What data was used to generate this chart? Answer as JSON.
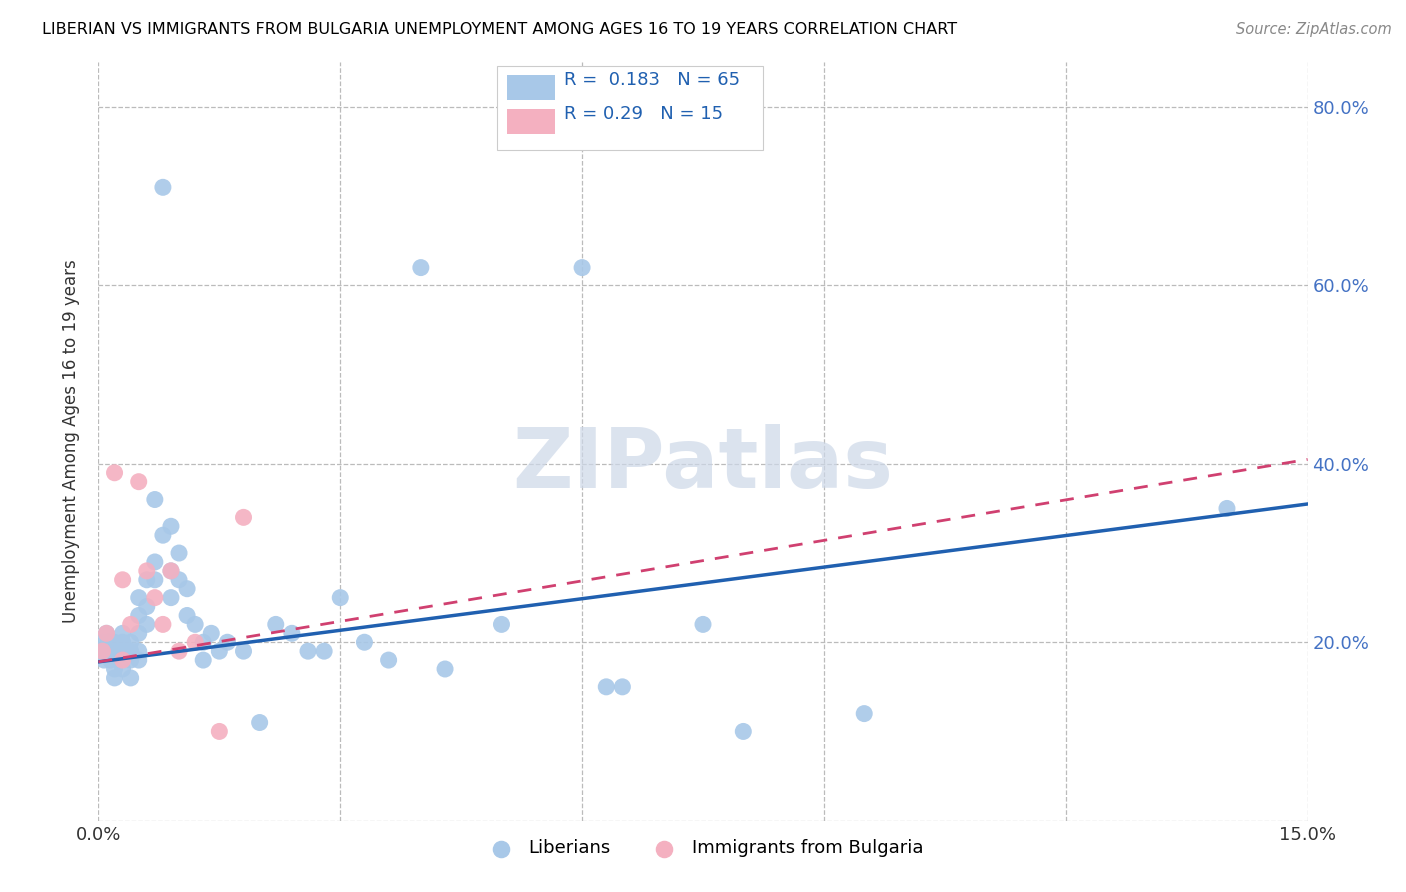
{
  "title": "LIBERIAN VS IMMIGRANTS FROM BULGARIA UNEMPLOYMENT AMONG AGES 16 TO 19 YEARS CORRELATION CHART",
  "source": "Source: ZipAtlas.com",
  "ylabel": "Unemployment Among Ages 16 to 19 years",
  "xlim": [
    0.0,
    0.15
  ],
  "ylim": [
    0.0,
    0.85
  ],
  "yticks": [
    0.0,
    0.2,
    0.4,
    0.6,
    0.8
  ],
  "xticks": [
    0.0,
    0.03,
    0.06,
    0.09,
    0.12,
    0.15
  ],
  "liberian_R": 0.183,
  "liberian_N": 65,
  "bulgaria_R": 0.29,
  "bulgaria_N": 15,
  "liberian_color": "#a8c8e8",
  "liberian_line_color": "#2060b0",
  "bulgaria_color": "#f4b0c0",
  "bulgaria_line_color": "#d04070",
  "watermark_color": "#cdd8e8",
  "liberian_x": [
    0.0003,
    0.0005,
    0.0007,
    0.001,
    0.001,
    0.0012,
    0.0015,
    0.0015,
    0.002,
    0.002,
    0.002,
    0.002,
    0.003,
    0.003,
    0.003,
    0.003,
    0.004,
    0.004,
    0.004,
    0.004,
    0.005,
    0.005,
    0.005,
    0.005,
    0.005,
    0.006,
    0.006,
    0.006,
    0.007,
    0.007,
    0.007,
    0.008,
    0.008,
    0.009,
    0.009,
    0.009,
    0.01,
    0.01,
    0.011,
    0.011,
    0.012,
    0.013,
    0.013,
    0.014,
    0.015,
    0.016,
    0.018,
    0.02,
    0.022,
    0.024,
    0.026,
    0.028,
    0.03,
    0.033,
    0.036,
    0.04,
    0.043,
    0.05,
    0.06,
    0.063,
    0.065,
    0.075,
    0.08,
    0.095,
    0.14
  ],
  "liberian_y": [
    0.19,
    0.2,
    0.18,
    0.21,
    0.19,
    0.2,
    0.19,
    0.18,
    0.2,
    0.19,
    0.17,
    0.16,
    0.21,
    0.2,
    0.19,
    0.17,
    0.2,
    0.19,
    0.18,
    0.16,
    0.25,
    0.23,
    0.21,
    0.19,
    0.18,
    0.27,
    0.24,
    0.22,
    0.36,
    0.29,
    0.27,
    0.71,
    0.32,
    0.33,
    0.28,
    0.25,
    0.3,
    0.27,
    0.26,
    0.23,
    0.22,
    0.2,
    0.18,
    0.21,
    0.19,
    0.2,
    0.19,
    0.11,
    0.22,
    0.21,
    0.19,
    0.19,
    0.25,
    0.2,
    0.18,
    0.62,
    0.17,
    0.22,
    0.62,
    0.15,
    0.15,
    0.22,
    0.1,
    0.12,
    0.35
  ],
  "bulgaria_x": [
    0.0005,
    0.001,
    0.002,
    0.003,
    0.003,
    0.004,
    0.005,
    0.006,
    0.007,
    0.008,
    0.009,
    0.01,
    0.012,
    0.015,
    0.018
  ],
  "bulgaria_y": [
    0.19,
    0.21,
    0.39,
    0.27,
    0.18,
    0.22,
    0.38,
    0.28,
    0.25,
    0.22,
    0.28,
    0.19,
    0.2,
    0.1,
    0.34
  ]
}
